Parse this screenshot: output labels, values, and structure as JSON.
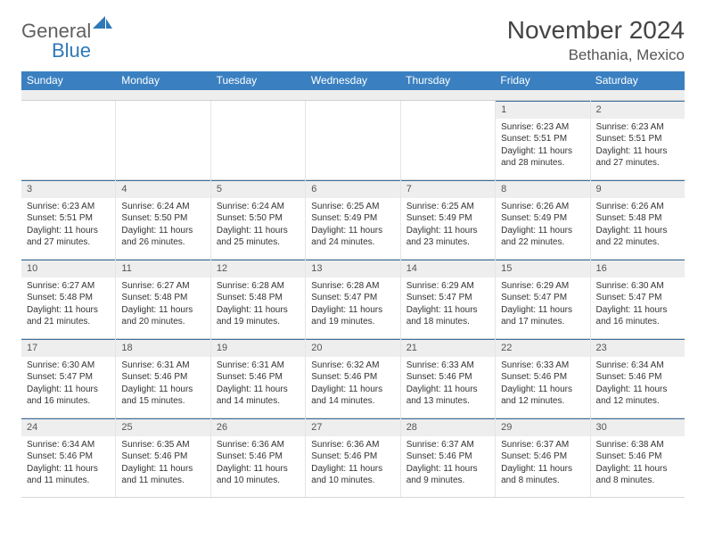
{
  "logo": {
    "text1": "General",
    "text2": "Blue"
  },
  "header": {
    "title": "November 2024",
    "location": "Bethania, Mexico"
  },
  "colors": {
    "header_bg": "#3a80c1",
    "header_text": "#ffffff",
    "daynum_bg": "#eeeeee",
    "daynum_border": "#3a6fa0",
    "cell_border": "#e5e5e5",
    "text": "#333333",
    "logo_gray": "#606060",
    "logo_blue": "#2f78b7"
  },
  "typography": {
    "title_fontsize": 28,
    "location_fontsize": 17,
    "dayhead_fontsize": 12,
    "daynum_fontsize": 11,
    "body_fontsize": 10
  },
  "day_names": [
    "Sunday",
    "Monday",
    "Tuesday",
    "Wednesday",
    "Thursday",
    "Friday",
    "Saturday"
  ],
  "weeks": [
    [
      {
        "empty": true
      },
      {
        "empty": true
      },
      {
        "empty": true
      },
      {
        "empty": true
      },
      {
        "empty": true
      },
      {
        "num": "1",
        "sunrise": "Sunrise: 6:23 AM",
        "sunset": "Sunset: 5:51 PM",
        "day1": "Daylight: 11 hours",
        "day2": "and 28 minutes."
      },
      {
        "num": "2",
        "sunrise": "Sunrise: 6:23 AM",
        "sunset": "Sunset: 5:51 PM",
        "day1": "Daylight: 11 hours",
        "day2": "and 27 minutes."
      }
    ],
    [
      {
        "num": "3",
        "sunrise": "Sunrise: 6:23 AM",
        "sunset": "Sunset: 5:51 PM",
        "day1": "Daylight: 11 hours",
        "day2": "and 27 minutes."
      },
      {
        "num": "4",
        "sunrise": "Sunrise: 6:24 AM",
        "sunset": "Sunset: 5:50 PM",
        "day1": "Daylight: 11 hours",
        "day2": "and 26 minutes."
      },
      {
        "num": "5",
        "sunrise": "Sunrise: 6:24 AM",
        "sunset": "Sunset: 5:50 PM",
        "day1": "Daylight: 11 hours",
        "day2": "and 25 minutes."
      },
      {
        "num": "6",
        "sunrise": "Sunrise: 6:25 AM",
        "sunset": "Sunset: 5:49 PM",
        "day1": "Daylight: 11 hours",
        "day2": "and 24 minutes."
      },
      {
        "num": "7",
        "sunrise": "Sunrise: 6:25 AM",
        "sunset": "Sunset: 5:49 PM",
        "day1": "Daylight: 11 hours",
        "day2": "and 23 minutes."
      },
      {
        "num": "8",
        "sunrise": "Sunrise: 6:26 AM",
        "sunset": "Sunset: 5:49 PM",
        "day1": "Daylight: 11 hours",
        "day2": "and 22 minutes."
      },
      {
        "num": "9",
        "sunrise": "Sunrise: 6:26 AM",
        "sunset": "Sunset: 5:48 PM",
        "day1": "Daylight: 11 hours",
        "day2": "and 22 minutes."
      }
    ],
    [
      {
        "num": "10",
        "sunrise": "Sunrise: 6:27 AM",
        "sunset": "Sunset: 5:48 PM",
        "day1": "Daylight: 11 hours",
        "day2": "and 21 minutes."
      },
      {
        "num": "11",
        "sunrise": "Sunrise: 6:27 AM",
        "sunset": "Sunset: 5:48 PM",
        "day1": "Daylight: 11 hours",
        "day2": "and 20 minutes."
      },
      {
        "num": "12",
        "sunrise": "Sunrise: 6:28 AM",
        "sunset": "Sunset: 5:48 PM",
        "day1": "Daylight: 11 hours",
        "day2": "and 19 minutes."
      },
      {
        "num": "13",
        "sunrise": "Sunrise: 6:28 AM",
        "sunset": "Sunset: 5:47 PM",
        "day1": "Daylight: 11 hours",
        "day2": "and 19 minutes."
      },
      {
        "num": "14",
        "sunrise": "Sunrise: 6:29 AM",
        "sunset": "Sunset: 5:47 PM",
        "day1": "Daylight: 11 hours",
        "day2": "and 18 minutes."
      },
      {
        "num": "15",
        "sunrise": "Sunrise: 6:29 AM",
        "sunset": "Sunset: 5:47 PM",
        "day1": "Daylight: 11 hours",
        "day2": "and 17 minutes."
      },
      {
        "num": "16",
        "sunrise": "Sunrise: 6:30 AM",
        "sunset": "Sunset: 5:47 PM",
        "day1": "Daylight: 11 hours",
        "day2": "and 16 minutes."
      }
    ],
    [
      {
        "num": "17",
        "sunrise": "Sunrise: 6:30 AM",
        "sunset": "Sunset: 5:47 PM",
        "day1": "Daylight: 11 hours",
        "day2": "and 16 minutes."
      },
      {
        "num": "18",
        "sunrise": "Sunrise: 6:31 AM",
        "sunset": "Sunset: 5:46 PM",
        "day1": "Daylight: 11 hours",
        "day2": "and 15 minutes."
      },
      {
        "num": "19",
        "sunrise": "Sunrise: 6:31 AM",
        "sunset": "Sunset: 5:46 PM",
        "day1": "Daylight: 11 hours",
        "day2": "and 14 minutes."
      },
      {
        "num": "20",
        "sunrise": "Sunrise: 6:32 AM",
        "sunset": "Sunset: 5:46 PM",
        "day1": "Daylight: 11 hours",
        "day2": "and 14 minutes."
      },
      {
        "num": "21",
        "sunrise": "Sunrise: 6:33 AM",
        "sunset": "Sunset: 5:46 PM",
        "day1": "Daylight: 11 hours",
        "day2": "and 13 minutes."
      },
      {
        "num": "22",
        "sunrise": "Sunrise: 6:33 AM",
        "sunset": "Sunset: 5:46 PM",
        "day1": "Daylight: 11 hours",
        "day2": "and 12 minutes."
      },
      {
        "num": "23",
        "sunrise": "Sunrise: 6:34 AM",
        "sunset": "Sunset: 5:46 PM",
        "day1": "Daylight: 11 hours",
        "day2": "and 12 minutes."
      }
    ],
    [
      {
        "num": "24",
        "sunrise": "Sunrise: 6:34 AM",
        "sunset": "Sunset: 5:46 PM",
        "day1": "Daylight: 11 hours",
        "day2": "and 11 minutes."
      },
      {
        "num": "25",
        "sunrise": "Sunrise: 6:35 AM",
        "sunset": "Sunset: 5:46 PM",
        "day1": "Daylight: 11 hours",
        "day2": "and 11 minutes."
      },
      {
        "num": "26",
        "sunrise": "Sunrise: 6:36 AM",
        "sunset": "Sunset: 5:46 PM",
        "day1": "Daylight: 11 hours",
        "day2": "and 10 minutes."
      },
      {
        "num": "27",
        "sunrise": "Sunrise: 6:36 AM",
        "sunset": "Sunset: 5:46 PM",
        "day1": "Daylight: 11 hours",
        "day2": "and 10 minutes."
      },
      {
        "num": "28",
        "sunrise": "Sunrise: 6:37 AM",
        "sunset": "Sunset: 5:46 PM",
        "day1": "Daylight: 11 hours",
        "day2": "and 9 minutes."
      },
      {
        "num": "29",
        "sunrise": "Sunrise: 6:37 AM",
        "sunset": "Sunset: 5:46 PM",
        "day1": "Daylight: 11 hours",
        "day2": "and 8 minutes."
      },
      {
        "num": "30",
        "sunrise": "Sunrise: 6:38 AM",
        "sunset": "Sunset: 5:46 PM",
        "day1": "Daylight: 11 hours",
        "day2": "and 8 minutes."
      }
    ]
  ]
}
